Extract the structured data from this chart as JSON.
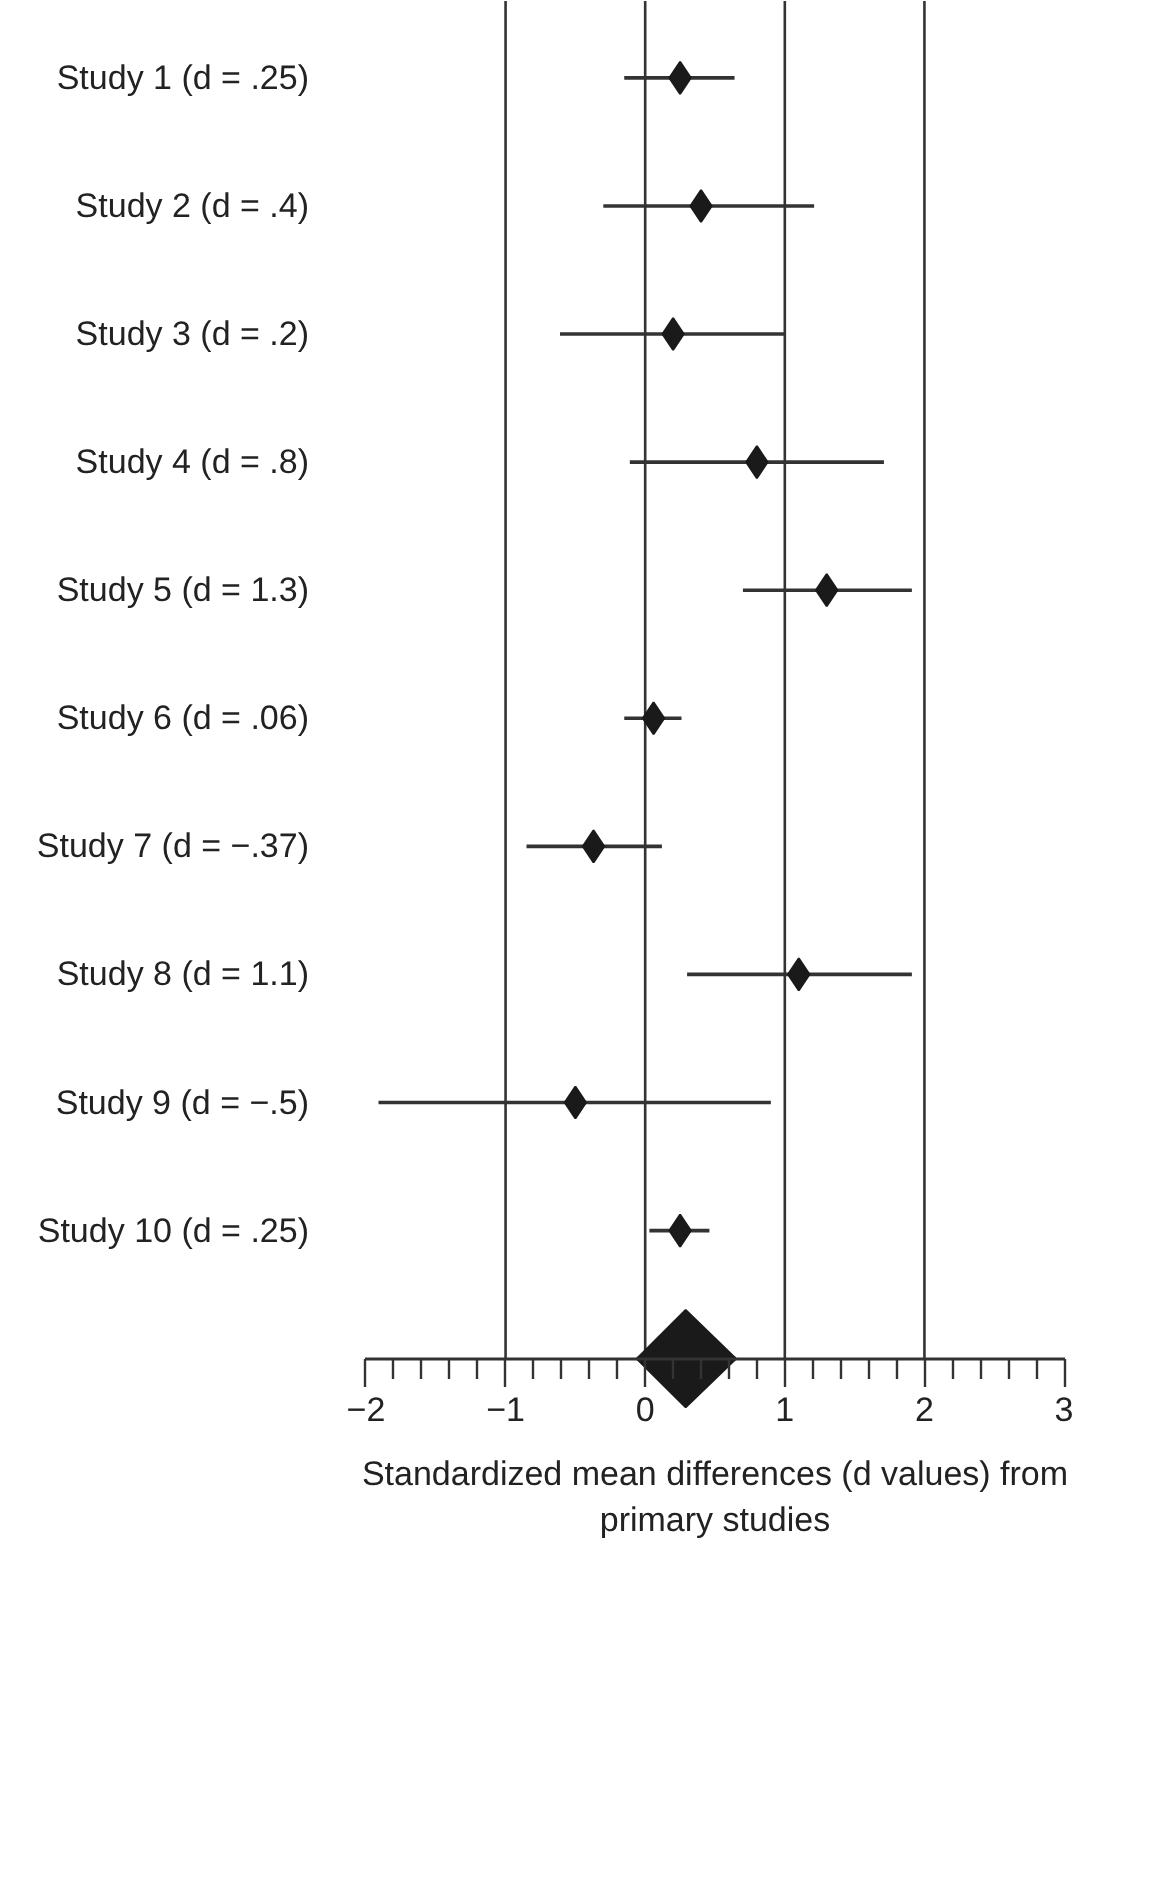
{
  "chart_data": {
    "type": "scatter",
    "orientation": "horizontal",
    "xlabel": "Standardized mean differences (d values) from primary studies",
    "categories": [
      "Study 1 (d = .25)",
      "Study 2 (d = .4)",
      "Study 3 (d = .2)",
      "Study 4 (d = .8)",
      "Study 5 (d = 1.3)",
      "Study 6 (d = .06)",
      "Study 7 (d = −.37)",
      "Study 8 (d = 1.1)",
      "Study 9 (d = −.5)",
      "Study 10 (d = .25)",
      null
    ],
    "series": [
      {
        "color": "#1a1a1a",
        "marker": "diamond",
        "values": [
          0.25,
          0.4,
          0.2,
          0.8,
          1.3,
          0.06,
          -0.37,
          1.1,
          -0.5,
          0.25,
          null
        ],
        "errors": [
          [
            -0.15,
            0.64
          ],
          [
            -0.3,
            1.21
          ],
          [
            -0.61,
            1.0
          ],
          [
            -0.11,
            1.71
          ],
          [
            0.7,
            1.91
          ],
          [
            -0.15,
            0.26
          ],
          [
            -0.85,
            0.12
          ],
          [
            0.3,
            1.91
          ],
          [
            -1.91,
            0.9
          ],
          [
            0.03,
            0.46
          ],
          null
        ]
      },
      {
        "color": "#1a1a1a",
        "marker": "diamond",
        "values": [
          null,
          null,
          null,
          null,
          null,
          null,
          null,
          null,
          null,
          null,
          0.29
        ],
        "errors": [
          null,
          null,
          null,
          null,
          null,
          null,
          null,
          null,
          null,
          null,
          [
            -0.06,
            0.65
          ]
        ]
      }
    ],
    "xlim": [
      -2,
      3
    ],
    "xticks": [
      {
        "value": -2,
        "label": "−2"
      },
      {
        "value": -1,
        "label": "−1"
      },
      0,
      1,
      2,
      3
    ],
    "ref_lines": [
      {
        "axis": "x",
        "value": -1,
        "color": "#333333"
      },
      {
        "axis": "x",
        "value": 0,
        "color": "#333333"
      },
      {
        "axis": "x",
        "value": 1,
        "color": "#333333"
      },
      {
        "axis": "x",
        "value": 2,
        "color": "#333333"
      }
    ],
    "grid": false
  }
}
